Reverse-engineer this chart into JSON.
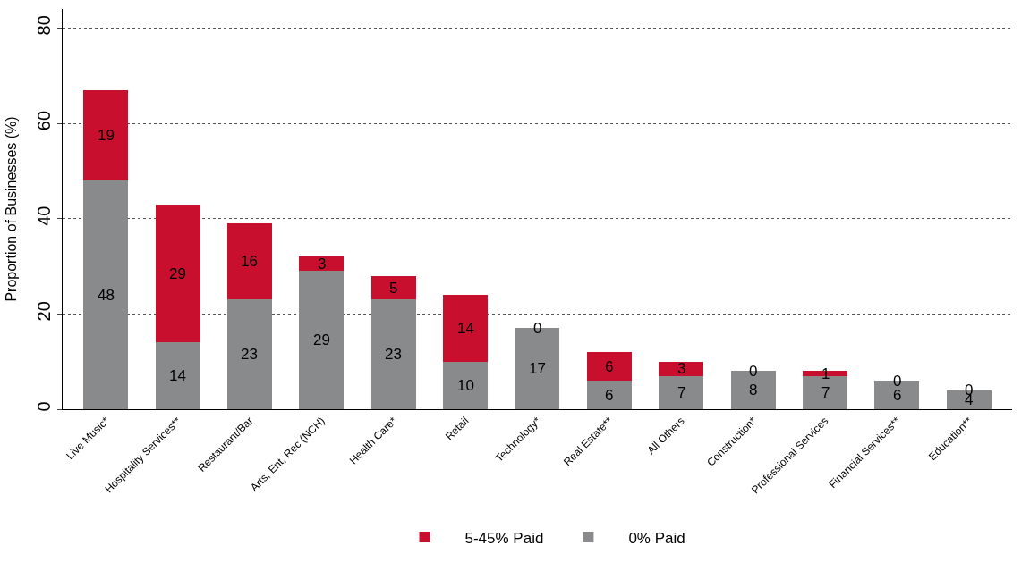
{
  "chart_data": {
    "type": "bar",
    "stacked": true,
    "ylabel": "Proportion of Businesses (%)",
    "categories": [
      "Live Music*",
      "Hospitality Services**",
      "Restaurant/Bar",
      "Arts, Ent, Rec (NCH)",
      "Health Care*",
      "Retail",
      "Technology*",
      "Real Estate**",
      "All Others",
      "Construction*",
      "Professional Services",
      "Financial Services**",
      "Education**"
    ],
    "series": [
      {
        "name": "0% Paid",
        "color": "#898a8c",
        "values": [
          48,
          14,
          23,
          29,
          23,
          10,
          17,
          6,
          7,
          8,
          7,
          6,
          4
        ]
      },
      {
        "name": "5-45% Paid",
        "color": "#c8102e",
        "values": [
          19,
          29,
          16,
          3,
          5,
          14,
          0,
          6,
          3,
          0,
          1,
          0,
          0
        ]
      }
    ],
    "ylim": [
      0,
      84
    ],
    "yticks": [
      0,
      20,
      40,
      60,
      80
    ],
    "grid": "y",
    "legend": "bottom",
    "data_labels": true
  }
}
